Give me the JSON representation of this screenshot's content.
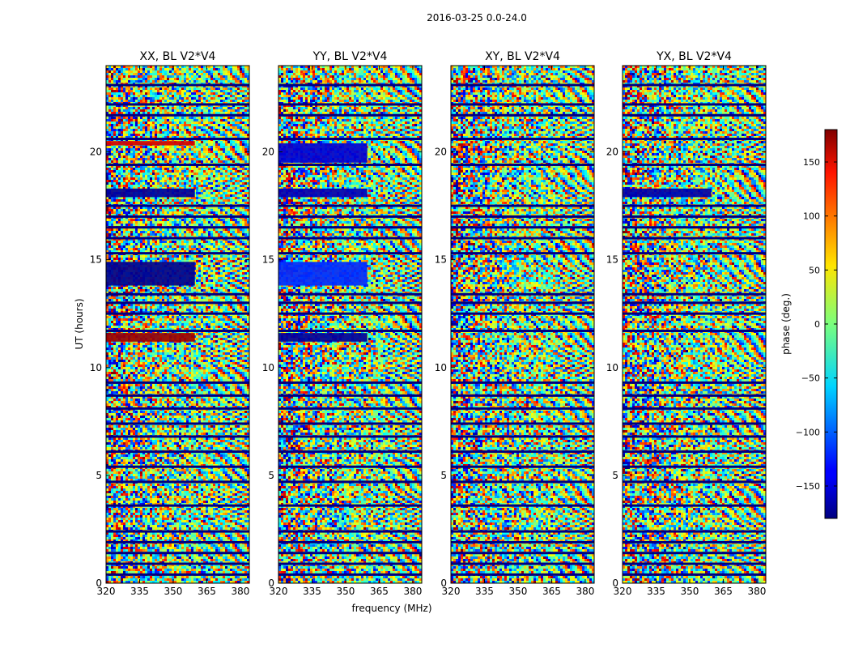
{
  "figure": {
    "suptitle": "2016-03-25 0.0-24.0"
  },
  "chart_data": [
    {
      "type": "heatmap",
      "title": "XX, BL V2*V4",
      "xlabel": "",
      "ylabel": "UT (hours)",
      "xlim": [
        320,
        384
      ],
      "ylim": [
        0,
        24
      ],
      "xticks": [
        320,
        335,
        350,
        365,
        380
      ],
      "yticks": [
        0,
        5,
        10,
        15,
        20
      ],
      "features": [
        {
          "from": 11.2,
          "to": 11.6,
          "phase": 170
        },
        {
          "from": 13.8,
          "to": 14.9,
          "phase": -175
        },
        {
          "from": 17.9,
          "to": 18.3,
          "phase": -170
        },
        {
          "from": 20.3,
          "to": 20.5,
          "phase": 150
        }
      ]
    },
    {
      "type": "heatmap",
      "title": "YY, BL V2*V4",
      "xlabel": "frequency (MHz)",
      "ylabel": "",
      "xlim": [
        320,
        384
      ],
      "ylim": [
        0,
        24
      ],
      "xticks": [
        320,
        335,
        350,
        365,
        380
      ],
      "yticks": [
        0,
        5,
        10,
        15,
        20
      ],
      "features": [
        {
          "from": 11.2,
          "to": 11.6,
          "phase": -170
        },
        {
          "from": 13.8,
          "to": 14.9,
          "phase": -120
        },
        {
          "from": 17.9,
          "to": 18.3,
          "phase": -160
        },
        {
          "from": 19.5,
          "to": 20.4,
          "phase": -150
        }
      ]
    },
    {
      "type": "heatmap",
      "title": "XY, BL V2*V4",
      "xlabel": "",
      "ylabel": "",
      "xlim": [
        320,
        384
      ],
      "ylim": [
        0,
        24
      ],
      "xticks": [
        320,
        335,
        350,
        365,
        380
      ],
      "yticks": [
        0,
        5,
        10,
        15,
        20
      ],
      "features": []
    },
    {
      "type": "heatmap",
      "title": "YX, BL V2*V4",
      "xlabel": "",
      "ylabel": "",
      "xlim": [
        320,
        384
      ],
      "ylim": [
        0,
        24
      ],
      "xticks": [
        320,
        335,
        350,
        365,
        380
      ],
      "yticks": [
        0,
        5,
        10,
        15,
        20
      ],
      "features": [
        {
          "from": 17.9,
          "to": 18.3,
          "phase": -165
        }
      ]
    }
  ],
  "colorbar": {
    "label": "phase (deg.)",
    "colormap": "jet",
    "range": [
      -180,
      180
    ],
    "ticks": [
      150,
      100,
      50,
      0,
      -50,
      -100,
      -150
    ],
    "tick_labels": [
      "150",
      "100",
      "50",
      "0",
      "−50",
      "−100",
      "−150"
    ]
  },
  "flagged_times": [
    0.4,
    0.9,
    1.4,
    1.9,
    2.4,
    3.6,
    4.7,
    5.4,
    6.1,
    6.8,
    7.4,
    8.1,
    8.7,
    9.3,
    11.7,
    12.5,
    13.0,
    13.4,
    15.3,
    16.0,
    16.5,
    17.0,
    17.5,
    19.4,
    20.6,
    21.7,
    22.2,
    23.1
  ]
}
